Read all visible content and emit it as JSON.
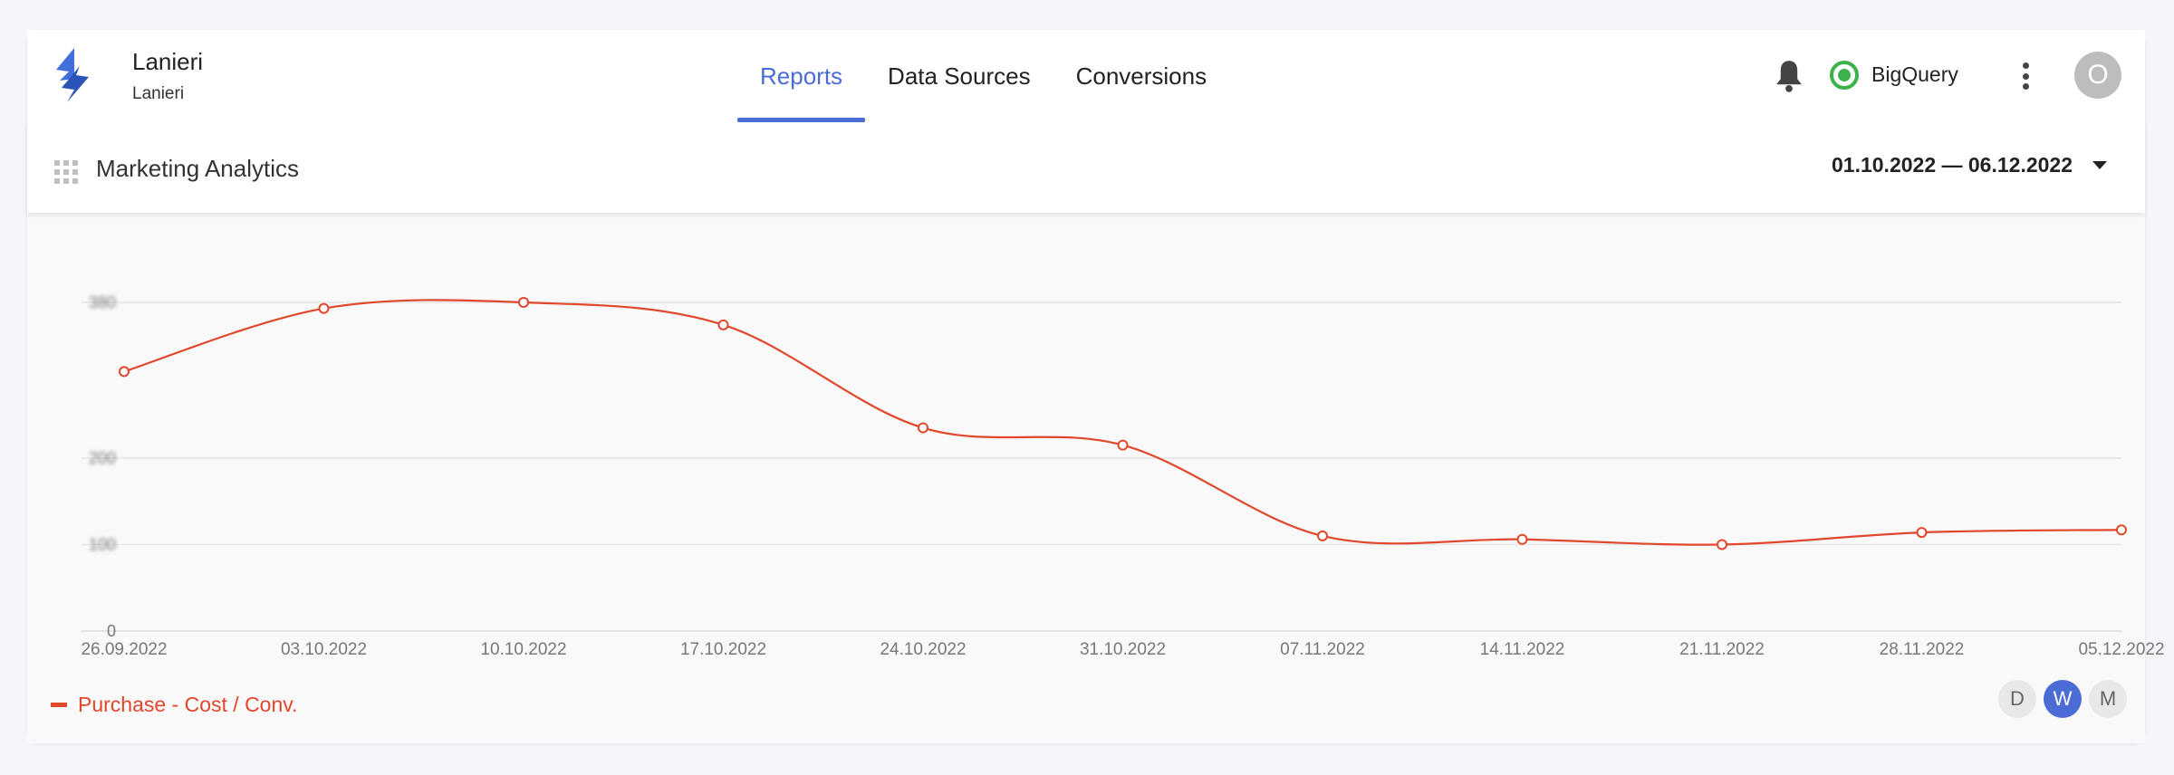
{
  "app": {
    "brand_title": "Lanieri",
    "brand_subtitle": "Lanieri",
    "accent_color": "#4a6cd4"
  },
  "nav": {
    "tabs": [
      {
        "label": "Reports",
        "active": true
      },
      {
        "label": "Data Sources",
        "active": false
      },
      {
        "label": "Conversions",
        "active": false
      }
    ]
  },
  "header_right": {
    "bell_icon": "bell-icon",
    "status_label": "BigQuery",
    "status_color": "#3db24a",
    "menu_icon": "more-vert-icon",
    "avatar_initial": "O"
  },
  "subbar": {
    "apps_icon": "apps-grid-icon",
    "title": "Marketing Analytics",
    "date_range": "01.10.2022 — 06.12.2022",
    "dropdown_icon": "caret-down-icon"
  },
  "chart_data": {
    "type": "line",
    "x": [
      "26.09.2022",
      "03.10.2022",
      "10.10.2022",
      "17.10.2022",
      "24.10.2022",
      "31.10.2022",
      "07.11.2022",
      "14.11.2022",
      "21.11.2022",
      "28.11.2022",
      "05.12.2022"
    ],
    "series": [
      {
        "name": "Purchase - Cost / Conv.",
        "color": "#e0472b",
        "values": [
          300,
          373,
          380,
          354,
          235,
          215,
          110,
          106,
          100,
          114,
          117
        ]
      }
    ],
    "y_ticks": [
      {
        "value": 0,
        "label": "0",
        "blurred": false
      },
      {
        "value": 100,
        "label": "100",
        "blurred": true
      },
      {
        "value": 200,
        "label": "200",
        "blurred": true
      },
      {
        "value": 380,
        "label": "380",
        "blurred": true
      }
    ],
    "ylim": [
      0,
      380
    ],
    "grid": true,
    "legend_position": "bottom-left"
  },
  "period": {
    "options": [
      {
        "label": "D",
        "active": false
      },
      {
        "label": "W",
        "active": true
      },
      {
        "label": "M",
        "active": false
      }
    ]
  }
}
